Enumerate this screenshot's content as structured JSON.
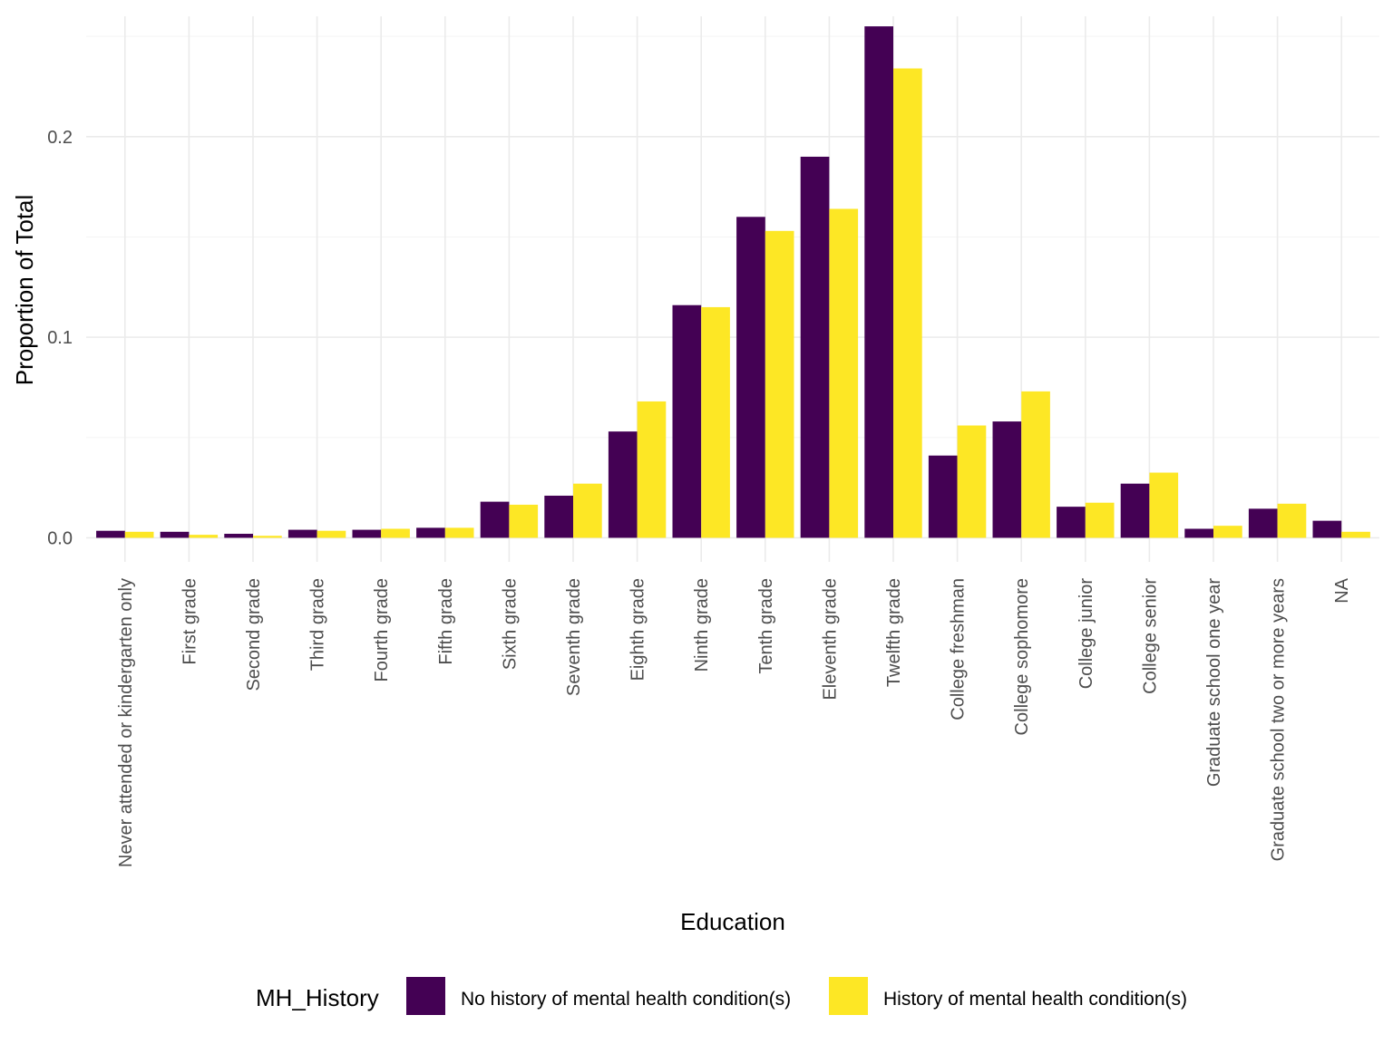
{
  "chart_data": {
    "type": "bar",
    "xlabel": "Education",
    "ylabel": "Proportion of Total",
    "ylim": [
      -0.012,
      0.26
    ],
    "yticks": [
      0.0,
      0.1,
      0.2
    ],
    "ytick_labels": [
      "0.0",
      "0.1",
      "0.2"
    ],
    "grid": true,
    "legend": {
      "title": "MH_History",
      "position": "bottom"
    },
    "categories": [
      "Never attended or kindergarten only",
      "First grade",
      "Second grade",
      "Third grade",
      "Fourth grade",
      "Fifth grade",
      "Sixth grade",
      "Seventh grade",
      "Eighth grade",
      "Ninth grade",
      "Tenth grade",
      "Eleventh grade",
      "Twelfth grade",
      "College freshman",
      "College sophomore",
      "College junior",
      "College senior",
      "Graduate school one year",
      "Graduate school two or more years",
      "NA"
    ],
    "series": [
      {
        "name": "No history of mental health condition(s)",
        "color": "#440154",
        "values": [
          0.0035,
          0.003,
          0.002,
          0.004,
          0.004,
          0.005,
          0.018,
          0.021,
          0.053,
          0.116,
          0.16,
          0.19,
          0.255,
          0.041,
          0.058,
          0.0155,
          0.027,
          0.0045,
          0.0145,
          0.0085
        ]
      },
      {
        "name": "History of mental health condition(s)",
        "color": "#FDE725",
        "values": [
          0.003,
          0.0015,
          0.001,
          0.0035,
          0.0045,
          0.005,
          0.0165,
          0.027,
          0.068,
          0.115,
          0.153,
          0.164,
          0.234,
          0.056,
          0.073,
          0.0175,
          0.0325,
          0.006,
          0.017,
          0.003
        ]
      }
    ]
  }
}
